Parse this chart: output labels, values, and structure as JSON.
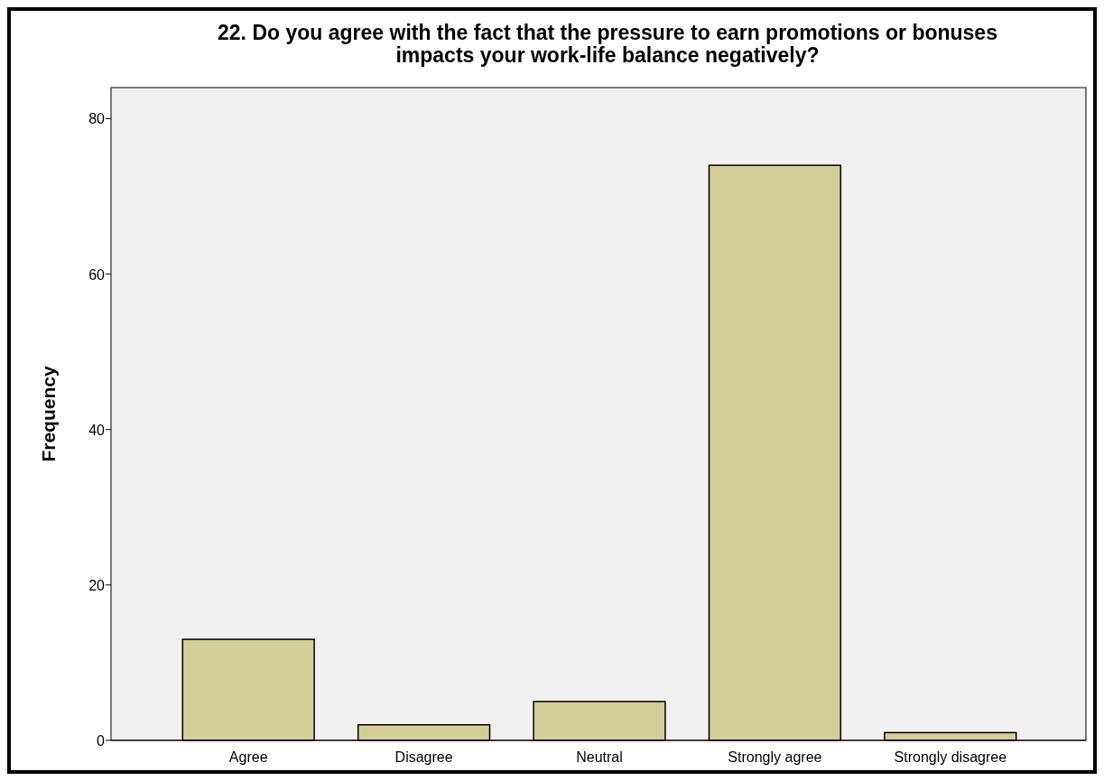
{
  "chart_data": {
    "type": "bar",
    "title": "22. Do you agree with the fact that the pressure to earn promotions or bonuses impacts your work-life balance negatively?",
    "ylabel": "Frequency",
    "categories": [
      "Agree",
      "Disagree",
      "Neutral",
      "Strongly agree",
      "Strongly disagree"
    ],
    "values": [
      13,
      2,
      5,
      74,
      1
    ],
    "color": "#d3ce97",
    "ylim": [
      0,
      84
    ],
    "yticks": [
      0,
      20,
      40,
      60,
      80
    ]
  }
}
